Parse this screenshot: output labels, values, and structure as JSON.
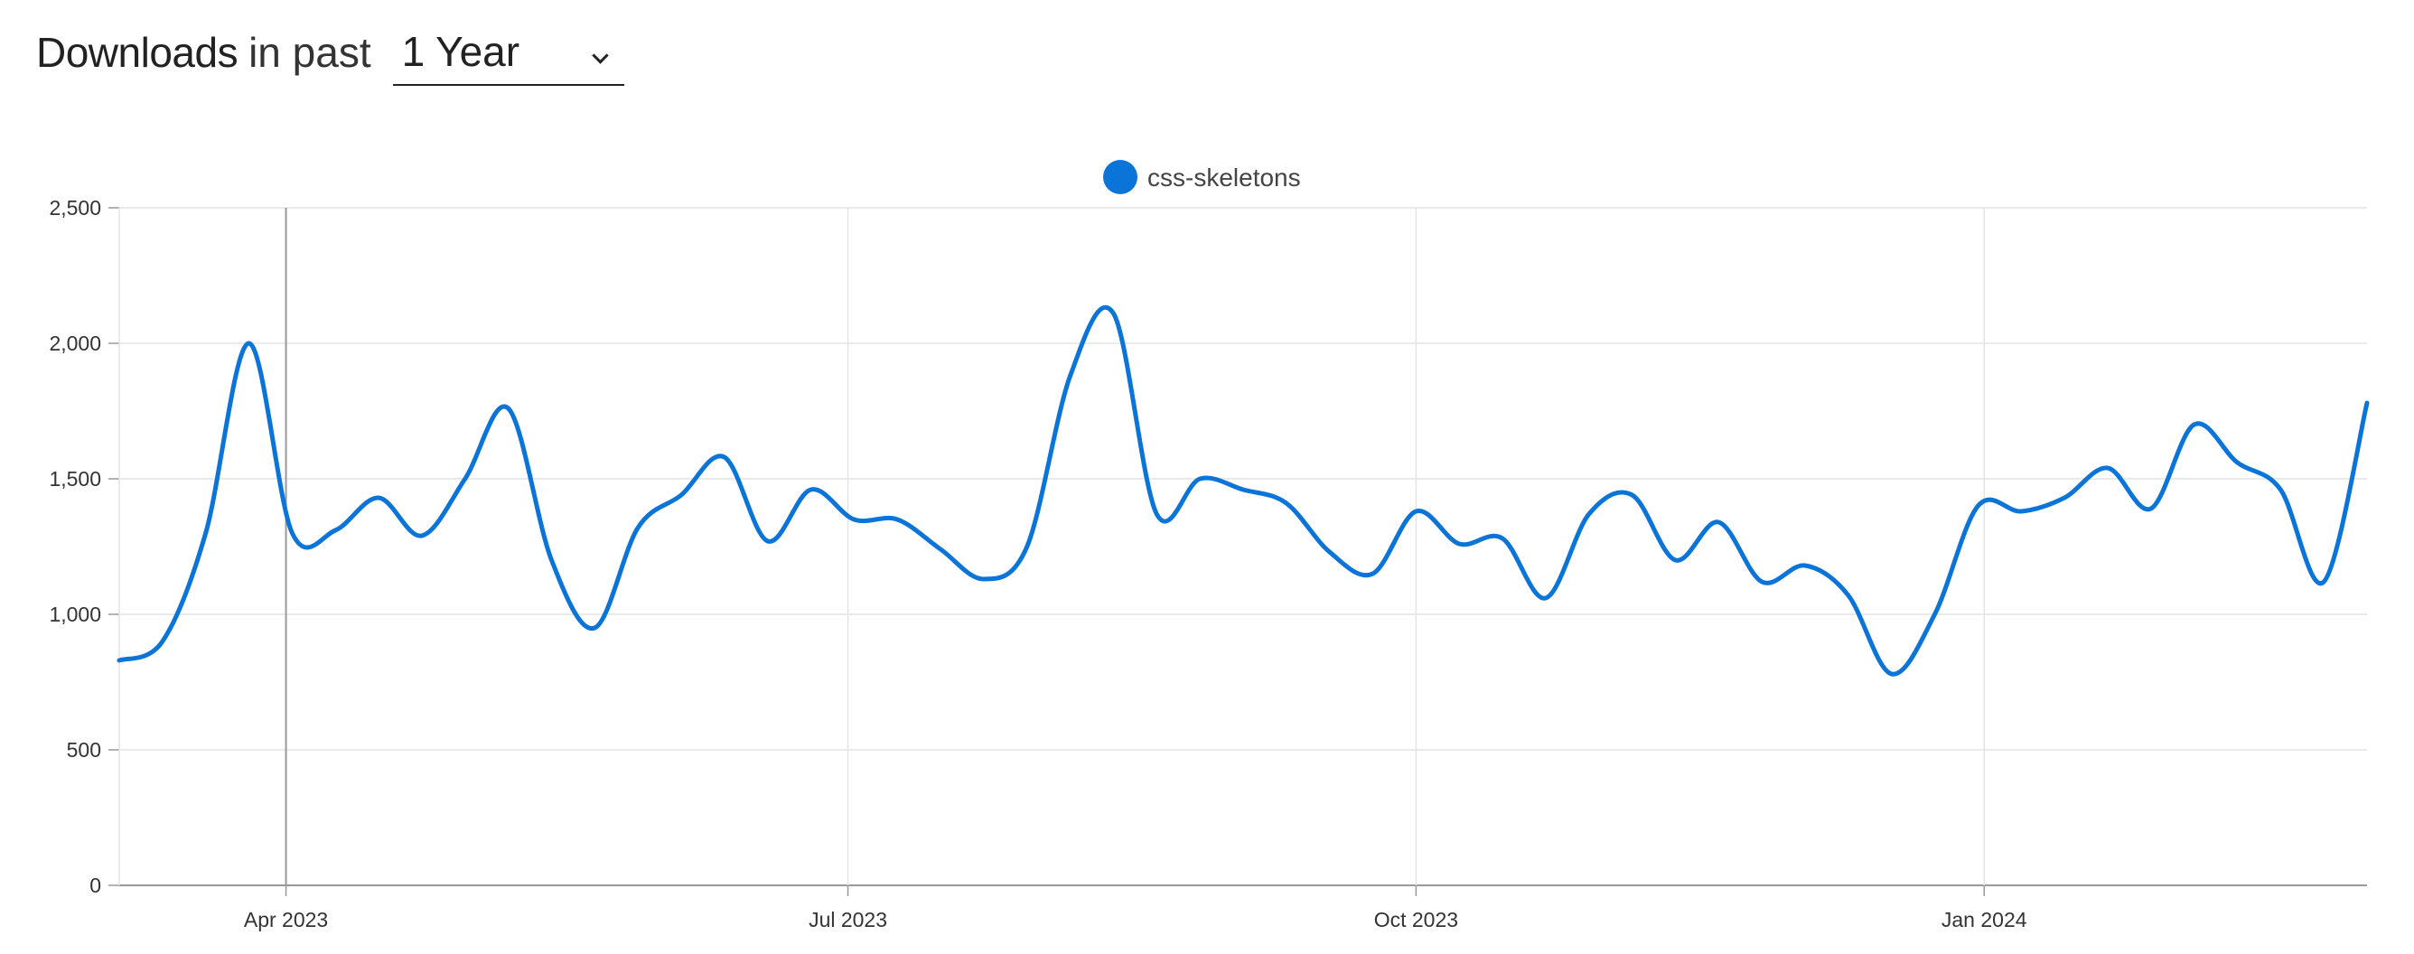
{
  "header": {
    "title_strong": "Downloads",
    "title_light": "in past",
    "period_value": "1 Year"
  },
  "colors": {
    "series": "#0b74d8",
    "grid": "#e4e4e4",
    "axis": "#999999"
  },
  "chart_data": {
    "type": "line",
    "series": [
      {
        "name": "css-skeletons",
        "points": [
          [
            "2023-03-05",
            830
          ],
          [
            "2023-03-12",
            900
          ],
          [
            "2023-03-19",
            1300
          ],
          [
            "2023-03-26",
            2000
          ],
          [
            "2023-04-02",
            1300
          ],
          [
            "2023-04-09",
            1310
          ],
          [
            "2023-04-16",
            1430
          ],
          [
            "2023-04-23",
            1290
          ],
          [
            "2023-04-30",
            1500
          ],
          [
            "2023-05-07",
            1760
          ],
          [
            "2023-05-14",
            1200
          ],
          [
            "2023-05-21",
            950
          ],
          [
            "2023-05-28",
            1320
          ],
          [
            "2023-06-04",
            1440
          ],
          [
            "2023-06-11",
            1580
          ],
          [
            "2023-06-18",
            1270
          ],
          [
            "2023-06-25",
            1460
          ],
          [
            "2023-07-02",
            1350
          ],
          [
            "2023-07-09",
            1350
          ],
          [
            "2023-07-16",
            1240
          ],
          [
            "2023-07-23",
            1130
          ],
          [
            "2023-07-30",
            1250
          ],
          [
            "2023-08-06",
            1880
          ],
          [
            "2023-08-13",
            2110
          ],
          [
            "2023-08-20",
            1370
          ],
          [
            "2023-08-27",
            1500
          ],
          [
            "2023-09-03",
            1460
          ],
          [
            "2023-09-10",
            1410
          ],
          [
            "2023-09-17",
            1230
          ],
          [
            "2023-09-24",
            1150
          ],
          [
            "2023-10-01",
            1380
          ],
          [
            "2023-10-08",
            1260
          ],
          [
            "2023-10-15",
            1280
          ],
          [
            "2023-10-22",
            1060
          ],
          [
            "2023-10-29",
            1370
          ],
          [
            "2023-11-05",
            1440
          ],
          [
            "2023-11-12",
            1200
          ],
          [
            "2023-11-19",
            1340
          ],
          [
            "2023-11-26",
            1120
          ],
          [
            "2023-12-03",
            1180
          ],
          [
            "2023-12-10",
            1070
          ],
          [
            "2023-12-17",
            780
          ],
          [
            "2023-12-24",
            1000
          ],
          [
            "2023-12-31",
            1400
          ],
          [
            "2024-01-07",
            1380
          ],
          [
            "2024-01-14",
            1430
          ],
          [
            "2024-01-21",
            1540
          ],
          [
            "2024-01-28",
            1390
          ],
          [
            "2024-02-04",
            1700
          ],
          [
            "2024-02-11",
            1560
          ],
          [
            "2024-02-18",
            1460
          ],
          [
            "2024-02-25",
            1120
          ],
          [
            "2024-03-03",
            1780
          ]
        ]
      }
    ],
    "x_ticks": [
      {
        "date": "2023-04-01",
        "label": "Apr 2023"
      },
      {
        "date": "2023-07-01",
        "label": "Jul 2023"
      },
      {
        "date": "2023-10-01",
        "label": "Oct 2023"
      },
      {
        "date": "2024-01-01",
        "label": "Jan 2024"
      }
    ],
    "xlim": [
      "2023-03-05",
      "2024-03-03"
    ],
    "y_ticks": [
      0,
      500,
      1000,
      1500,
      2000,
      2500
    ],
    "y_tick_labels": [
      "0",
      "500",
      "1,000",
      "1,500",
      "2,000",
      "2,500"
    ],
    "ylim": [
      0,
      2500
    ],
    "grid": true,
    "legend_position": "top-center",
    "highlight_date": "2023-04-01"
  }
}
